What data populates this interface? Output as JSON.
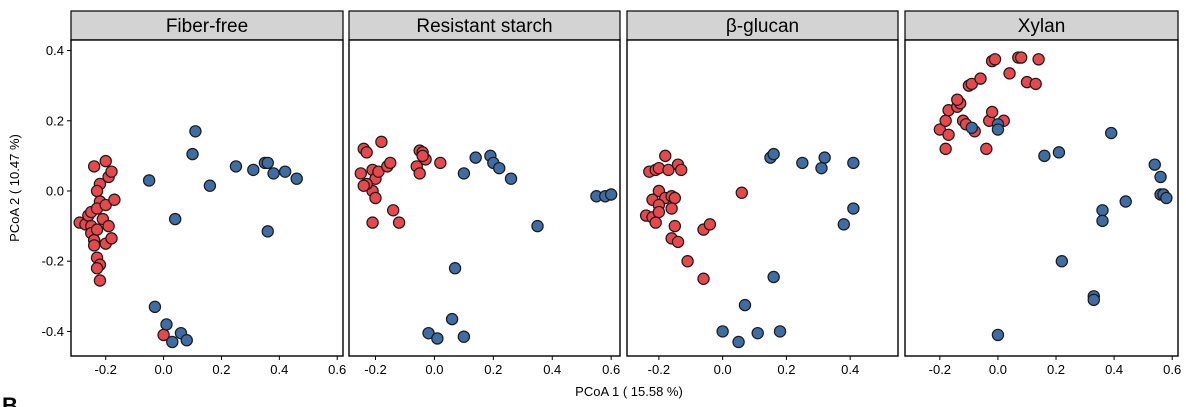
{
  "figure": {
    "ylabel": "PCoA 2 ( 10.47 %)",
    "xlabel": "PCoA 1 ( 15.58 %)",
    "corner_letter": "B"
  },
  "colors": {
    "group_red": "#e8474b",
    "group_blue": "#3e6da5",
    "strip_bg": "#d3d3d3",
    "panel_border": "#000000"
  },
  "chart_data": [
    {
      "type": "scatter",
      "title": "Fiber-free",
      "xlim": [
        -0.32,
        0.62
      ],
      "ylim": [
        -0.47,
        0.43
      ],
      "xticks": [
        -0.2,
        0.0,
        0.2,
        0.4,
        0.6
      ],
      "xtick_labels": [
        "-0.2",
        "0.0",
        "0.2",
        "0.4",
        "0.6"
      ],
      "yticks": [
        0.4,
        0.2,
        0.0,
        -0.2,
        -0.4
      ],
      "ytick_labels": [
        "0.4",
        "0.2",
        "0.0",
        "-0.2",
        "-0.4"
      ],
      "series": [
        {
          "color": "red",
          "points": [
            [
              -0.29,
              -0.09
            ],
            [
              -0.27,
              -0.095
            ],
            [
              -0.26,
              -0.07
            ],
            [
              -0.25,
              -0.1
            ],
            [
              -0.25,
              -0.12
            ],
            [
              -0.24,
              -0.14
            ],
            [
              -0.24,
              -0.155
            ],
            [
              -0.23,
              -0.11
            ],
            [
              -0.25,
              -0.06
            ],
            [
              -0.24,
              0.07
            ],
            [
              -0.22,
              0.02
            ],
            [
              -0.23,
              0.0
            ],
            [
              -0.22,
              -0.03
            ],
            [
              -0.23,
              -0.05
            ],
            [
              -0.21,
              -0.08
            ],
            [
              -0.2,
              -0.04
            ],
            [
              -0.2,
              0.085
            ],
            [
              -0.19,
              0.04
            ],
            [
              -0.18,
              0.055
            ],
            [
              -0.17,
              -0.025
            ],
            [
              -0.19,
              -0.1
            ],
            [
              -0.2,
              -0.15
            ],
            [
              -0.18,
              -0.135
            ],
            [
              -0.23,
              -0.19
            ],
            [
              -0.22,
              -0.21
            ],
            [
              -0.23,
              -0.22
            ],
            [
              -0.22,
              -0.255
            ],
            [
              0.0,
              -0.41
            ]
          ]
        },
        {
          "color": "blue",
          "points": [
            [
              -0.05,
              0.03
            ],
            [
              0.04,
              -0.08
            ],
            [
              0.11,
              0.17
            ],
            [
              0.1,
              0.105
            ],
            [
              0.16,
              0.015
            ],
            [
              0.25,
              0.07
            ],
            [
              0.31,
              0.06
            ],
            [
              0.35,
              0.08
            ],
            [
              0.36,
              0.08
            ],
            [
              0.38,
              0.05
            ],
            [
              0.42,
              0.055
            ],
            [
              0.46,
              0.035
            ],
            [
              0.36,
              -0.115
            ],
            [
              -0.03,
              -0.33
            ],
            [
              0.01,
              -0.38
            ],
            [
              0.03,
              -0.43
            ],
            [
              0.06,
              -0.405
            ],
            [
              0.08,
              -0.425
            ]
          ]
        }
      ]
    },
    {
      "type": "scatter",
      "title": "Resistant starch",
      "xlim": [
        -0.29,
        0.63
      ],
      "ylim": [
        -0.47,
        0.43
      ],
      "xticks": [
        -0.2,
        0.0,
        0.2,
        0.4,
        0.6
      ],
      "xtick_labels": [
        "-0.2",
        "0.0",
        "0.2",
        "0.4",
        "0.6"
      ],
      "yticks": [
        0.4,
        0.2,
        0.0,
        -0.2,
        -0.4
      ],
      "ytick_labels": [],
      "series": [
        {
          "color": "red",
          "points": [
            [
              -0.25,
              0.05
            ],
            [
              -0.24,
              0.12
            ],
            [
              -0.23,
              0.11
            ],
            [
              -0.21,
              0.06
            ],
            [
              -0.2,
              0.035
            ],
            [
              -0.21,
              0.0
            ],
            [
              -0.23,
              0.02
            ],
            [
              -0.24,
              0.015
            ],
            [
              -0.2,
              -0.02
            ],
            [
              -0.21,
              -0.09
            ],
            [
              -0.19,
              0.055
            ],
            [
              -0.16,
              0.07
            ],
            [
              -0.15,
              0.08
            ],
            [
              -0.18,
              0.14
            ],
            [
              -0.14,
              -0.055
            ],
            [
              -0.12,
              -0.09
            ],
            [
              -0.06,
              0.07
            ],
            [
              -0.05,
              0.115
            ],
            [
              -0.04,
              0.11
            ],
            [
              -0.03,
              0.09
            ],
            [
              -0.05,
              0.05
            ],
            [
              -0.04,
              0.1
            ],
            [
              0.02,
              0.08
            ]
          ]
        },
        {
          "color": "blue",
          "points": [
            [
              0.1,
              0.05
            ],
            [
              0.14,
              0.095
            ],
            [
              0.19,
              0.1
            ],
            [
              0.2,
              0.08
            ],
            [
              0.22,
              0.065
            ],
            [
              0.26,
              0.035
            ],
            [
              0.35,
              -0.1
            ],
            [
              0.55,
              -0.015
            ],
            [
              0.58,
              -0.015
            ],
            [
              0.6,
              -0.01
            ],
            [
              0.07,
              -0.22
            ],
            [
              0.06,
              -0.365
            ],
            [
              -0.02,
              -0.405
            ],
            [
              0.01,
              -0.42
            ],
            [
              0.1,
              -0.415
            ]
          ]
        }
      ]
    },
    {
      "type": "scatter",
      "title": "β-glucan",
      "xlim": [
        -0.3,
        0.55
      ],
      "ylim": [
        -0.47,
        0.43
      ],
      "xticks": [
        -0.2,
        0.0,
        0.2,
        0.4
      ],
      "xtick_labels": [
        "-0.2",
        "0.0",
        "0.2",
        "0.4"
      ],
      "yticks": [
        0.4,
        0.2,
        0.0,
        -0.2,
        -0.4
      ],
      "ytick_labels": [],
      "series": [
        {
          "color": "red",
          "points": [
            [
              -0.23,
              0.055
            ],
            [
              -0.21,
              0.06
            ],
            [
              -0.2,
              0.065
            ],
            [
              -0.18,
              0.1
            ],
            [
              -0.17,
              0.06
            ],
            [
              -0.14,
              0.075
            ],
            [
              -0.13,
              0.06
            ],
            [
              -0.2,
              0.0
            ],
            [
              -0.18,
              -0.02
            ],
            [
              -0.16,
              -0.015
            ],
            [
              -0.15,
              -0.02
            ],
            [
              -0.22,
              -0.025
            ],
            [
              -0.2,
              -0.04
            ],
            [
              -0.24,
              -0.07
            ],
            [
              -0.22,
              -0.075
            ],
            [
              -0.21,
              -0.09
            ],
            [
              -0.2,
              -0.06
            ],
            [
              -0.16,
              -0.05
            ],
            [
              -0.15,
              -0.1
            ],
            [
              -0.16,
              -0.135
            ],
            [
              -0.14,
              -0.145
            ],
            [
              -0.11,
              -0.2
            ],
            [
              -0.06,
              -0.11
            ],
            [
              -0.04,
              -0.095
            ],
            [
              -0.06,
              -0.25
            ],
            [
              0.06,
              -0.005
            ]
          ]
        },
        {
          "color": "blue",
          "points": [
            [
              0.15,
              0.095
            ],
            [
              0.16,
              0.105
            ],
            [
              0.25,
              0.08
            ],
            [
              0.31,
              0.065
            ],
            [
              0.32,
              0.095
            ],
            [
              0.41,
              0.08
            ],
            [
              0.41,
              -0.05
            ],
            [
              0.38,
              -0.095
            ],
            [
              0.16,
              -0.245
            ],
            [
              0.07,
              -0.325
            ],
            [
              0.0,
              -0.4
            ],
            [
              0.05,
              -0.43
            ],
            [
              0.11,
              -0.405
            ],
            [
              0.18,
              -0.4
            ]
          ]
        }
      ]
    },
    {
      "type": "scatter",
      "title": "Xylan",
      "xlim": [
        -0.32,
        0.62
      ],
      "ylim": [
        -0.47,
        0.43
      ],
      "xticks": [
        -0.2,
        0.0,
        0.2,
        0.4,
        0.6
      ],
      "xtick_labels": [
        "-0.2",
        "0.0",
        "0.2",
        "0.4",
        "0.6"
      ],
      "yticks": [
        0.4,
        0.2,
        0.0,
        -0.2,
        -0.4
      ],
      "ytick_labels": [],
      "series": [
        {
          "color": "red",
          "points": [
            [
              -0.2,
              0.175
            ],
            [
              -0.18,
              0.2
            ],
            [
              -0.17,
              0.16
            ],
            [
              -0.17,
              0.23
            ],
            [
              -0.14,
              0.24
            ],
            [
              -0.13,
              0.25
            ],
            [
              -0.12,
              0.2
            ],
            [
              -0.14,
              0.26
            ],
            [
              -0.1,
              0.3
            ],
            [
              -0.09,
              0.305
            ],
            [
              -0.06,
              0.32
            ],
            [
              -0.08,
              0.17
            ],
            [
              -0.04,
              0.12
            ],
            [
              -0.03,
              0.2
            ],
            [
              -0.02,
              0.225
            ],
            [
              -0.02,
              0.37
            ],
            [
              -0.01,
              0.375
            ],
            [
              0.02,
              0.2
            ],
            [
              0.04,
              0.335
            ],
            [
              0.07,
              0.38
            ],
            [
              0.08,
              0.38
            ],
            [
              0.1,
              0.31
            ],
            [
              0.13,
              0.305
            ],
            [
              0.14,
              0.375
            ],
            [
              -0.11,
              0.19
            ],
            [
              -0.18,
              0.12
            ]
          ]
        },
        {
          "color": "blue",
          "points": [
            [
              -0.09,
              0.18
            ],
            [
              0.0,
              0.19
            ],
            [
              0.0,
              0.175
            ],
            [
              0.16,
              0.1
            ],
            [
              0.21,
              0.11
            ],
            [
              0.39,
              0.165
            ],
            [
              0.36,
              -0.055
            ],
            [
              0.36,
              -0.085
            ],
            [
              0.44,
              -0.03
            ],
            [
              0.54,
              0.075
            ],
            [
              0.56,
              0.04
            ],
            [
              0.56,
              -0.01
            ],
            [
              0.57,
              -0.01
            ],
            [
              0.58,
              -0.02
            ],
            [
              0.22,
              -0.2
            ],
            [
              0.33,
              -0.3
            ],
            [
              0.33,
              -0.31
            ],
            [
              0.0,
              -0.41
            ]
          ]
        }
      ]
    }
  ]
}
